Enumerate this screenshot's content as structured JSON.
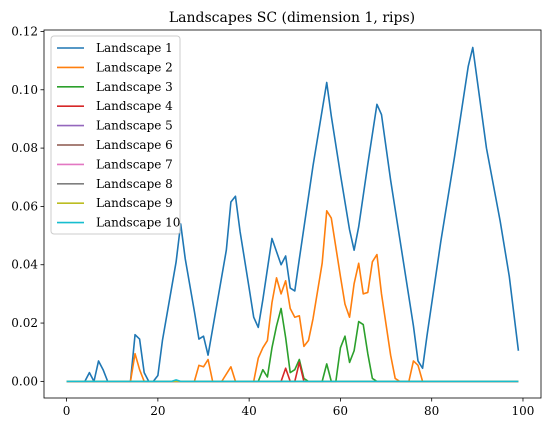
{
  "chart_data": {
    "type": "line",
    "title": "Landscapes SC (dimension 1, rips)",
    "xlabel": "",
    "ylabel": "",
    "xlim": [
      -4.95,
      103.95
    ],
    "ylim": [
      -0.0057,
      0.1205
    ],
    "xticks": [
      0,
      20,
      40,
      60,
      80,
      100
    ],
    "yticks": [
      0.0,
      0.02,
      0.04,
      0.06,
      0.08,
      0.1,
      0.12
    ],
    "ytick_labels": [
      "0.00",
      "0.02",
      "0.04",
      "0.06",
      "0.08",
      "0.10",
      "0.12"
    ],
    "grid": false,
    "legend_position": "upper-left",
    "series": [
      {
        "name": "Landscape 1",
        "color": "#1f77b4",
        "points": [
          [
            0,
            0
          ],
          [
            4,
            0
          ],
          [
            5,
            0.003
          ],
          [
            6,
            0
          ],
          [
            7,
            0.007
          ],
          [
            8,
            0.004
          ],
          [
            9,
            0
          ],
          [
            14,
            0
          ],
          [
            15,
            0.016
          ],
          [
            16,
            0.0145
          ],
          [
            17,
            0.003
          ],
          [
            18,
            0
          ],
          [
            19,
            0
          ],
          [
            20,
            0.002
          ],
          [
            21,
            0.014
          ],
          [
            24,
            0.041
          ],
          [
            25,
            0.054
          ],
          [
            26,
            0.042
          ],
          [
            28,
            0.024
          ],
          [
            29,
            0.0145
          ],
          [
            30,
            0.0155
          ],
          [
            31,
            0.009
          ],
          [
            32,
            0.018
          ],
          [
            35,
            0.045
          ],
          [
            36,
            0.0615
          ],
          [
            37,
            0.0635
          ],
          [
            38,
            0.0515
          ],
          [
            40,
            0.032
          ],
          [
            41,
            0.022
          ],
          [
            42,
            0.0185
          ],
          [
            43,
            0.028
          ],
          [
            45,
            0.049
          ],
          [
            47,
            0.04
          ],
          [
            48,
            0.043
          ],
          [
            49,
            0.032
          ],
          [
            50,
            0.031
          ],
          [
            51,
            0.042
          ],
          [
            54,
            0.074
          ],
          [
            57,
            0.1025
          ],
          [
            58,
            0.091
          ],
          [
            60,
            0.071
          ],
          [
            62,
            0.052
          ],
          [
            63,
            0.045
          ],
          [
            64,
            0.053
          ],
          [
            66,
            0.0745
          ],
          [
            68,
            0.095
          ],
          [
            69,
            0.0915
          ],
          [
            71,
            0.069
          ],
          [
            73,
            0.049
          ],
          [
            76,
            0.019
          ],
          [
            77,
            0.007
          ],
          [
            78,
            0.0045
          ],
          [
            79,
            0.016
          ],
          [
            82,
            0.048
          ],
          [
            85,
            0.077
          ],
          [
            88,
            0.108
          ],
          [
            89,
            0.1145
          ],
          [
            90,
            0.103
          ],
          [
            92,
            0.08
          ],
          [
            95,
            0.055
          ],
          [
            97,
            0.036
          ],
          [
            99,
            0.0105
          ]
        ]
      },
      {
        "name": "Landscape 2",
        "color": "#ff7f0e",
        "points": [
          [
            0,
            0
          ],
          [
            14,
            0
          ],
          [
            15,
            0.0095
          ],
          [
            16,
            0.004
          ],
          [
            17,
            0
          ],
          [
            28,
            0
          ],
          [
            29,
            0.0055
          ],
          [
            30,
            0.005
          ],
          [
            31,
            0.0075
          ],
          [
            32,
            0
          ],
          [
            34,
            0
          ],
          [
            36,
            0.005
          ],
          [
            37,
            0
          ],
          [
            41,
            0
          ],
          [
            42,
            0.008
          ],
          [
            43,
            0.0115
          ],
          [
            44,
            0.014
          ],
          [
            45,
            0.027
          ],
          [
            46,
            0.0355
          ],
          [
            47,
            0.03
          ],
          [
            48,
            0.0345
          ],
          [
            49,
            0.025
          ],
          [
            50,
            0.022
          ],
          [
            51,
            0.0225
          ],
          [
            52,
            0.012
          ],
          [
            53,
            0.014
          ],
          [
            54,
            0.0215
          ],
          [
            56,
            0.0405
          ],
          [
            57,
            0.0585
          ],
          [
            58,
            0.056
          ],
          [
            60,
            0.036
          ],
          [
            61,
            0.0265
          ],
          [
            62,
            0.022
          ],
          [
            63,
            0.0335
          ],
          [
            64,
            0.0405
          ],
          [
            65,
            0.03
          ],
          [
            66,
            0.0305
          ],
          [
            67,
            0.041
          ],
          [
            68,
            0.0435
          ],
          [
            69,
            0.03
          ],
          [
            71,
            0.009
          ],
          [
            72,
            0.001
          ],
          [
            73,
            0
          ],
          [
            75,
            0
          ],
          [
            76,
            0.007
          ],
          [
            77,
            0.0055
          ],
          [
            78,
            0
          ],
          [
            99,
            0
          ]
        ]
      },
      {
        "name": "Landscape 3",
        "color": "#2ca02c",
        "points": [
          [
            0,
            0
          ],
          [
            42,
            0
          ],
          [
            43,
            0.004
          ],
          [
            44,
            0.0015
          ],
          [
            45,
            0.0115
          ],
          [
            46,
            0.019
          ],
          [
            47,
            0.025
          ],
          [
            48,
            0.015
          ],
          [
            49,
            0.003
          ],
          [
            50,
            0.004
          ],
          [
            51,
            0.0075
          ],
          [
            52,
            0.001
          ],
          [
            53,
            0
          ],
          [
            56,
            0
          ],
          [
            57,
            0.006
          ],
          [
            58,
            0
          ],
          [
            59,
            0
          ],
          [
            60,
            0.0115
          ],
          [
            61,
            0.0155
          ],
          [
            62,
            0.0065
          ],
          [
            63,
            0.0105
          ],
          [
            64,
            0.0205
          ],
          [
            65,
            0.0195
          ],
          [
            66,
            0.0095
          ],
          [
            67,
            0.001
          ],
          [
            68,
            0
          ],
          [
            99,
            0
          ]
        ]
      },
      {
        "name": "Landscape 4",
        "color": "#d62728",
        "points": [
          [
            0,
            0
          ],
          [
            47,
            0
          ],
          [
            48,
            0.0045
          ],
          [
            49,
            0
          ],
          [
            50,
            0
          ],
          [
            51,
            0.0065
          ],
          [
            52,
            0
          ],
          [
            99,
            0
          ]
        ]
      },
      {
        "name": "Landscape 5",
        "color": "#9467bd",
        "points": [
          [
            0,
            0
          ],
          [
            99,
            0
          ]
        ]
      },
      {
        "name": "Landscape 6",
        "color": "#8c564b",
        "points": [
          [
            0,
            0
          ],
          [
            99,
            0
          ]
        ]
      },
      {
        "name": "Landscape 7",
        "color": "#e377c2",
        "points": [
          [
            0,
            0
          ],
          [
            99,
            0
          ]
        ]
      },
      {
        "name": "Landscape 8",
        "color": "#7f7f7f",
        "points": [
          [
            0,
            0
          ],
          [
            99,
            0
          ]
        ]
      },
      {
        "name": "Landscape 9",
        "color": "#bcbd22",
        "points": [
          [
            0,
            0
          ],
          [
            99,
            0
          ]
        ]
      },
      {
        "name": "Landscape 10",
        "color": "#17becf",
        "points": [
          [
            0,
            0
          ],
          [
            23,
            0
          ],
          [
            24,
            0.0005
          ],
          [
            25,
            0
          ],
          [
            99,
            0
          ]
        ]
      }
    ]
  }
}
